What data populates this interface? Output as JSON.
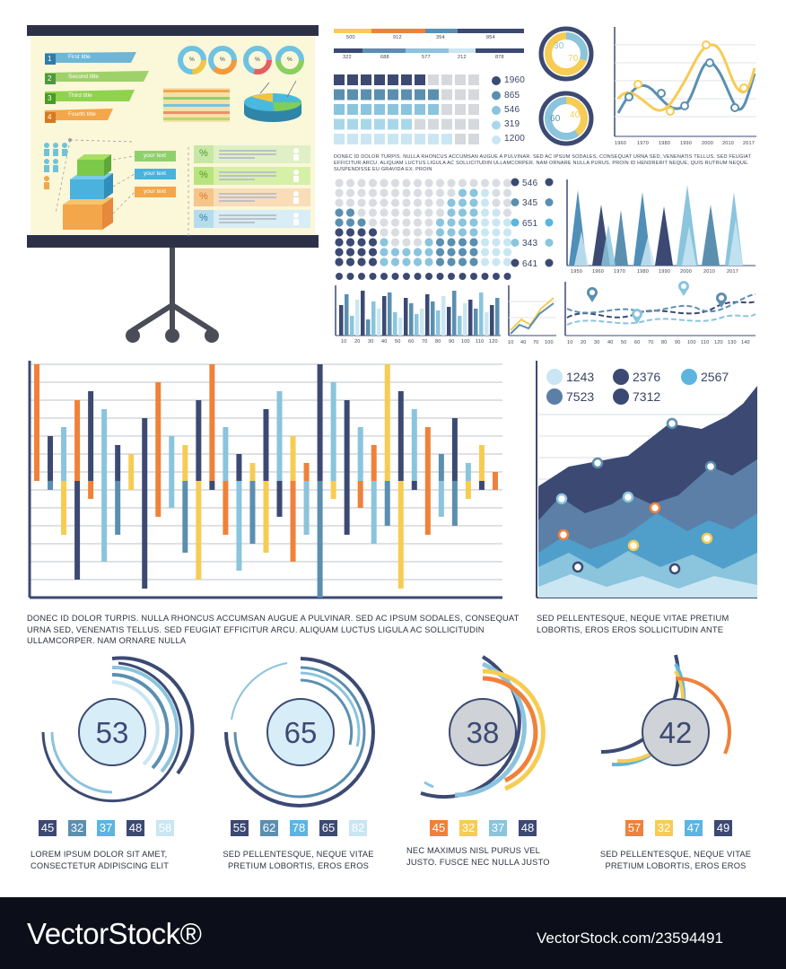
{
  "colors": {
    "navy": "#3c4a73",
    "blue": "#5b8fb0",
    "sky": "#8ac4dd",
    "pale": "#c9e6f2",
    "orange": "#f0813a",
    "yellow": "#f6cc53",
    "gray": "#cfd2d6",
    "footer": "#0c0f1a"
  },
  "board": {
    "titles": [
      "First title",
      "Second title",
      "Third title",
      "Fourth title"
    ],
    "numbers": [
      "1",
      "2",
      "3",
      "4"
    ],
    "your_text": [
      "your text",
      "your text",
      "your text"
    ],
    "percent_sign": "%",
    "row_icons": [
      "%",
      "%",
      "%",
      "%"
    ]
  },
  "top_bars": {
    "row1": [
      "500",
      "912",
      "354",
      "854"
    ],
    "row2": [
      "322",
      "688",
      "577",
      "212",
      "878"
    ]
  },
  "square_legend": [
    "1960",
    "865",
    "546",
    "319",
    "1200"
  ],
  "top_donut": {
    "a": "30",
    "b": "70",
    "c": "60",
    "d": "40"
  },
  "top_line_chart": {
    "x_ticks": [
      "1960",
      "1970",
      "1980",
      "1990",
      "2000",
      "2010",
      "2017"
    ]
  },
  "top_caption": "DONEC ID DOLOR TURPIS. NULLA RHONCUS ACCUMSAN AUGUE A PULVINAR. SED AC IPSUM SODALES, CONSEQUAT URNA SED, VENENATIS TELLUS. SED FEUGIAT EFFICITUR ARCU. ALIQUAM LUCTUS LIGULA AC SOLLICITUDIN ULLAMCORPER. NAM ORNARE NULLA PURUS. PROIN ID HENDRERIT NEQUE, QUIS RUTRUM NEQUE. SUSPENDISSE EU GRAVIDA EX. PROIN",
  "dot_legend": [
    "546",
    "345",
    "651",
    "343",
    "641"
  ],
  "cone_chart": {
    "x_ticks": [
      "1950",
      "1960",
      "1970",
      "1980",
      "1990",
      "2000",
      "2010",
      "2017"
    ]
  },
  "small_bar_ticks": [
    "10",
    "20",
    "30",
    "40",
    "50",
    "60",
    "70",
    "80",
    "90",
    "100",
    "110",
    "120"
  ],
  "mini_line_ticks": [
    "10",
    "40",
    "70",
    "100"
  ],
  "wave_ticks": [
    "10",
    "20",
    "30",
    "40",
    "50",
    "60",
    "70",
    "80",
    "90",
    "100",
    "110",
    "120",
    "130",
    "140"
  ],
  "area_legend": [
    "1243",
    "2376",
    "2567",
    "7523",
    "7312"
  ],
  "mid_caption_left": "DONEC ID DOLOR TURPIS. NULLA RHONCUS ACCUMSAN AUGUE A PULVINAR. SED AC IPSUM SODALES, CONSEQUAT URNA SED, VENENATIS TELLUS. SED FEUGIAT EFFICITUR ARCU. ALIQUAM LUCTUS LIGULA AC SOLLICITUDIN ULLAMCORPER. NAM ORNARE NULLA",
  "mid_caption_right": "SED PELLENTESQUE, NEQUE VITAE PRETIUM LOBORTIS, EROS EROS SOLLICITUDIN ANTE",
  "gauges": [
    {
      "center": "53",
      "chips": [
        "45",
        "32",
        "37",
        "48",
        "58"
      ],
      "caption": "LOREM IPSUM DOLOR SIT AMET, CONSECTETUR ADIPISCING ELIT"
    },
    {
      "center": "65",
      "chips": [
        "55",
        "62",
        "78",
        "65",
        "82"
      ],
      "caption": "SED PELLENTESQUE, NEQUE VITAE PRETIUM LOBORTIS, EROS EROS"
    },
    {
      "center": "38",
      "chips": [
        "45",
        "32",
        "37",
        "48"
      ],
      "caption": "NEC MAXIMUS NISL PURUS VEL JUSTO. FUSCE NEC NULLA JUSTO"
    },
    {
      "center": "42",
      "chips": [
        "57",
        "32",
        "47",
        "49"
      ],
      "caption": "SED PELLENTESQUE, NEQUE VITAE PRETIUM LOBORTIS, EROS EROS"
    }
  ],
  "watermark": {
    "left": "VectorStock®",
    "right": "VectorStock.com/23594491"
  }
}
